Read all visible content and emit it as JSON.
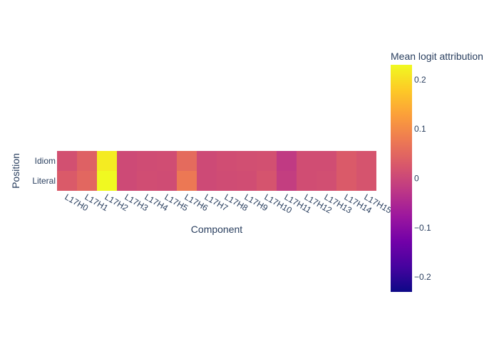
{
  "chart_data": {
    "type": "heatmap",
    "title": "",
    "xlabel": "Component",
    "ylabel": "Position",
    "x": [
      "L17H0",
      "L17H1",
      "L17H2",
      "L17H3",
      "L17H4",
      "L17H5",
      "L17H6",
      "L17H7",
      "L17H8",
      "L17H9",
      "L17H10",
      "L17H11",
      "L17H12",
      "L17H13",
      "L17H14",
      "L17H15"
    ],
    "y": [
      "Idiom",
      "Literal"
    ],
    "z": [
      [
        0.015,
        0.04,
        0.215,
        0.005,
        0.008,
        0.01,
        0.055,
        0.005,
        0.01,
        0.012,
        0.015,
        -0.02,
        0.01,
        0.01,
        0.03,
        0.02
      ],
      [
        0.03,
        0.05,
        0.23,
        0.005,
        0.01,
        0.008,
        0.075,
        0.005,
        0.008,
        0.01,
        0.02,
        -0.015,
        0.01,
        0.012,
        0.03,
        0.02
      ]
    ],
    "colorbar": {
      "title": "Mean logit attribution",
      "range": [
        -0.23,
        0.23
      ],
      "ticks": [
        0.2,
        0.1,
        0,
        -0.1,
        -0.2
      ],
      "tick_labels": [
        "0.2",
        "0.1",
        "0",
        "−0.1",
        "−0.2"
      ]
    },
    "colorscale": [
      "#0d0887",
      "#46039f",
      "#7201a8",
      "#9c179e",
      "#bd3786",
      "#d8576b",
      "#ed7953",
      "#fb9f3a",
      "#fdca26",
      "#f0f921"
    ]
  }
}
